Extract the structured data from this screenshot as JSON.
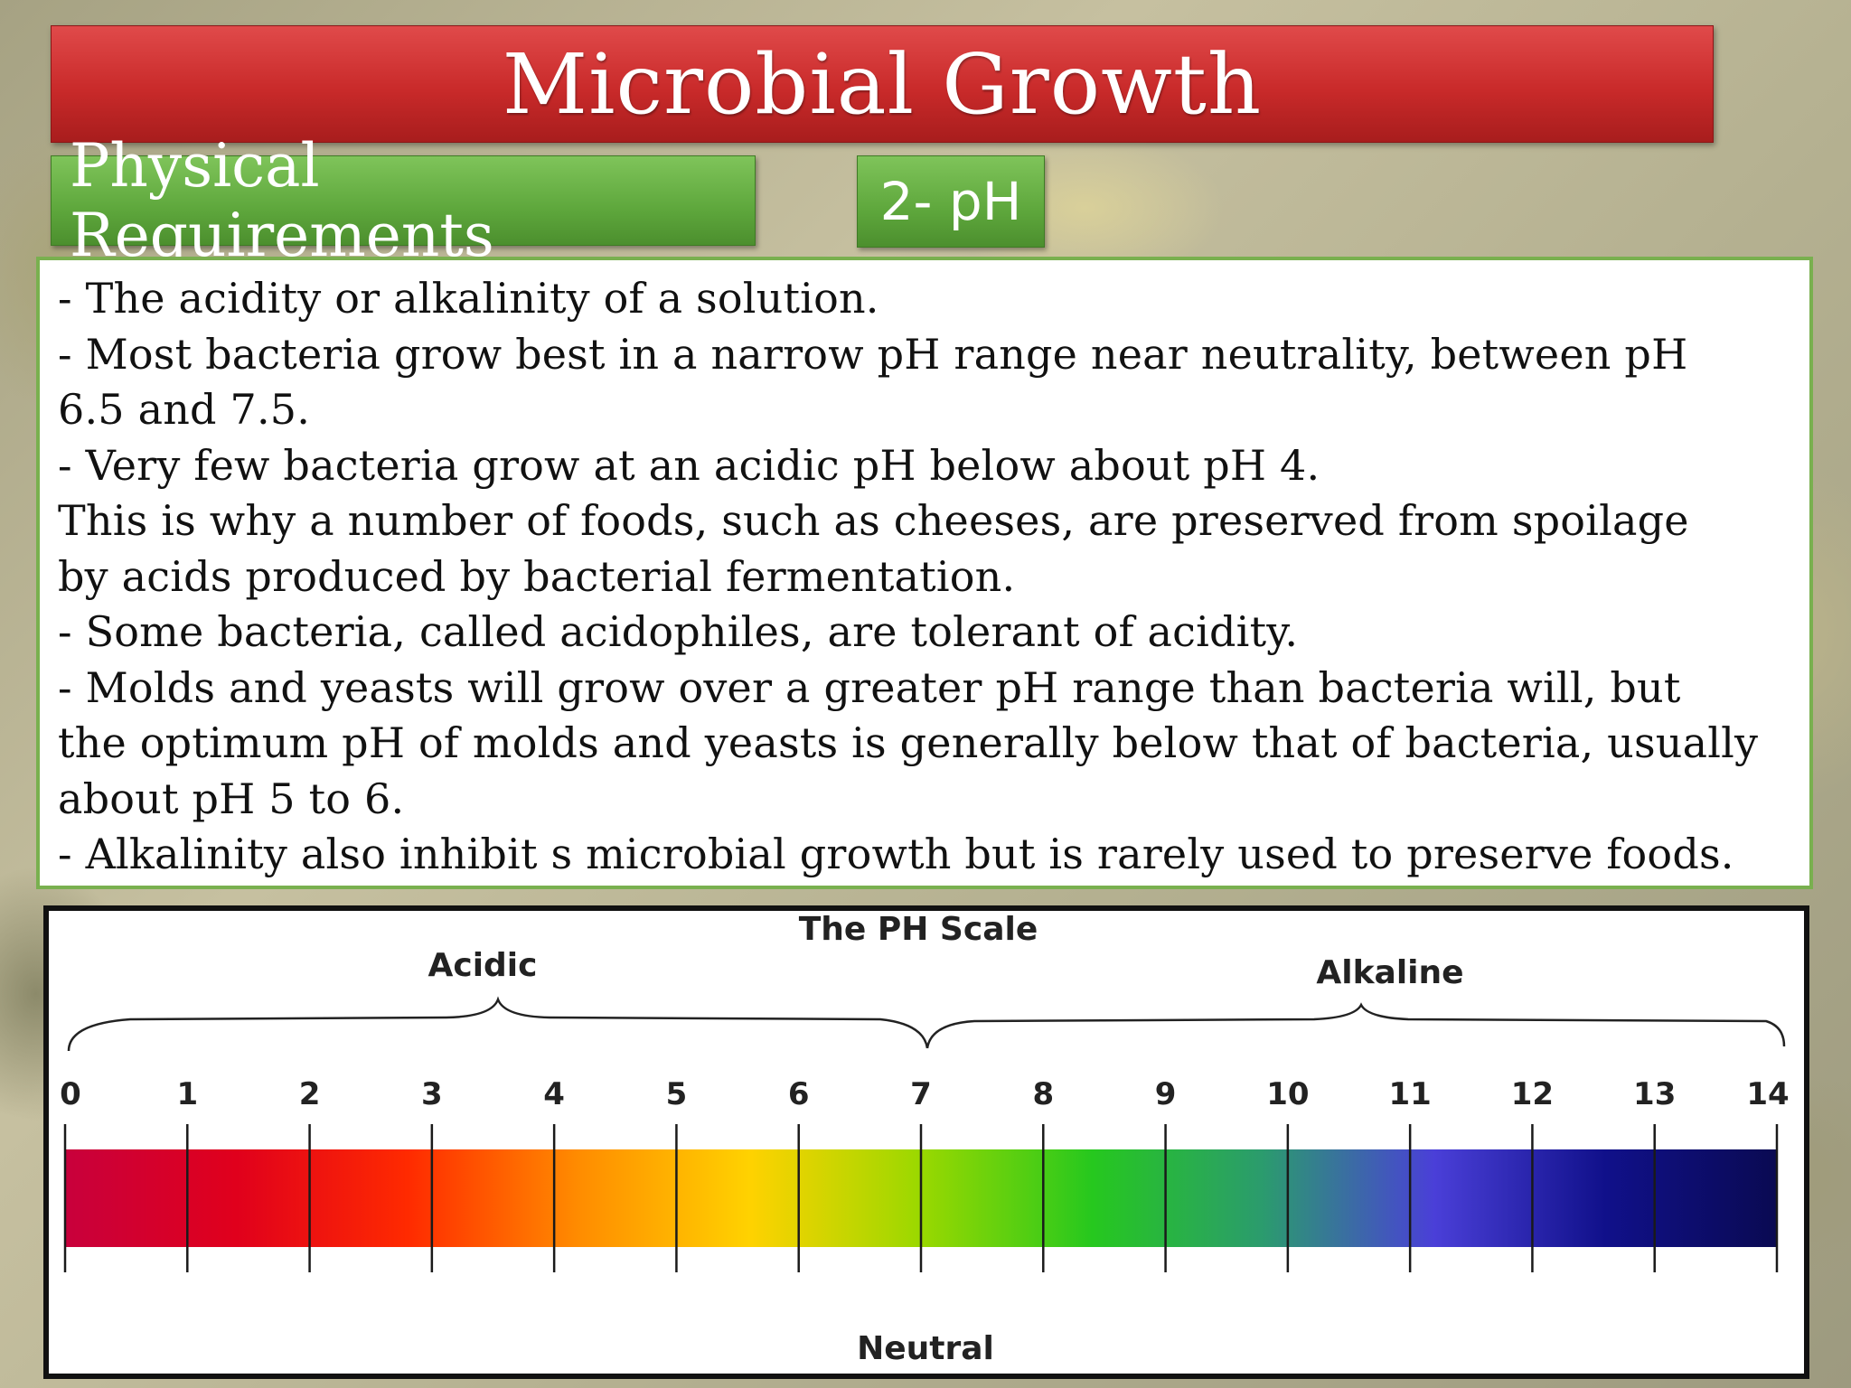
{
  "header": {
    "title": "Microbial Growth",
    "section_tag": "Physical Requirements",
    "topic_tag": "2-  pH"
  },
  "content": {
    "lines": [
      "- The acidity or alkalinity of a solution.",
      "- Most bacteria grow best in a narrow pH range near neutrality, between pH",
      "6.5 and 7.5.",
      "- Very few bacteria grow at an acidic pH below about pH 4.",
      "This is why a number of foods, such as cheeses, are preserved from spoilage",
      "by acids produced by bacterial fermentation.",
      "- Some bacteria, called acidophiles, are tolerant of acidity.",
      "- Molds and yeasts will grow over a greater pH range than bacteria will, but",
      "the optimum pH of molds and yeasts is generally below that of bacteria, usually",
      "about pH 5 to 6.",
      "- Alkalinity also inhibit s microbial growth but is rarely used to preserve foods."
    ]
  },
  "ph_scale": {
    "title": "The PH Scale",
    "acidic_label": "Acidic",
    "alkaline_label": "Alkaline",
    "neutral_label": "Neutral",
    "ticks": [
      "0",
      "1",
      "2",
      "3",
      "4",
      "5",
      "6",
      "7",
      "8",
      "9",
      "10",
      "11",
      "12",
      "13",
      "14"
    ],
    "colors": [
      "#c8003c",
      "#e0001c",
      "#ff2a00",
      "#ff8c00",
      "#ffd200",
      "#9ad800",
      "#26c81e",
      "#2b9b6e",
      "#4a3fd8",
      "#10108a",
      "#0a0a52"
    ]
  }
}
